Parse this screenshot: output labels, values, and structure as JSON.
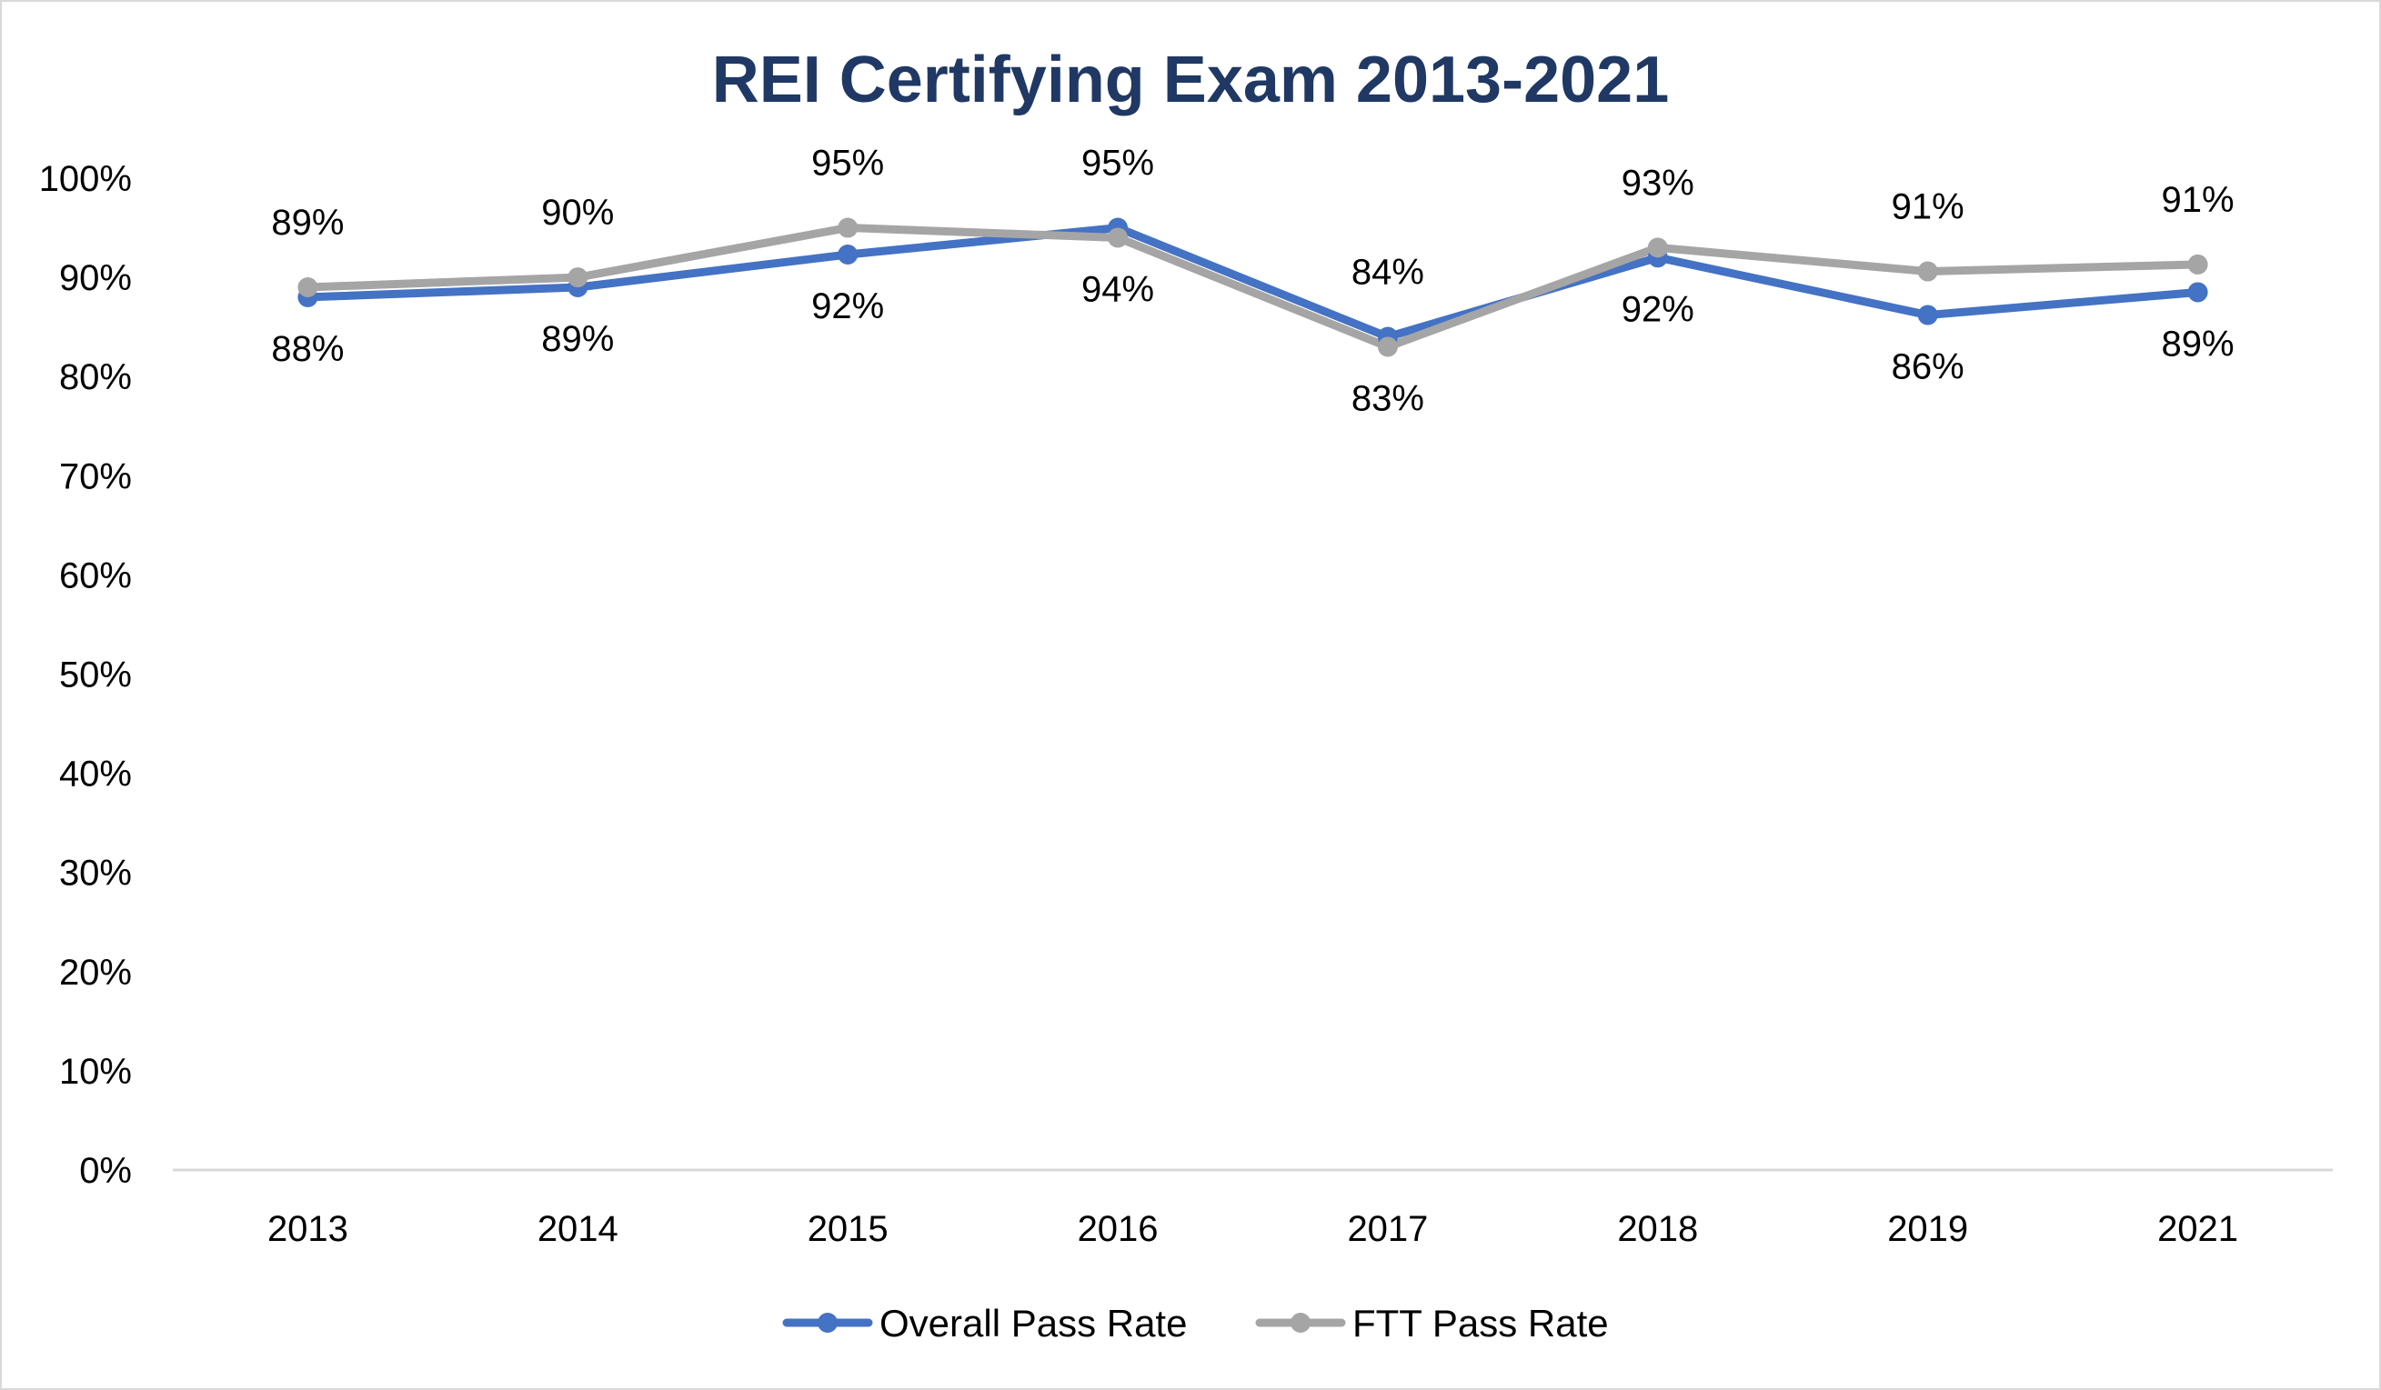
{
  "chart_data": {
    "type": "line",
    "title": "REI Certifying Exam 2013-2021",
    "categories": [
      "2013",
      "2014",
      "2015",
      "2016",
      "2017",
      "2018",
      "2019",
      "2021"
    ],
    "ylim": [
      0,
      100
    ],
    "yticks": [
      "0%",
      "10%",
      "20%",
      "30%",
      "40%",
      "50%",
      "60%",
      "70%",
      "80%",
      "90%",
      "100%"
    ],
    "grid": false,
    "legend_position": "bottom",
    "series": [
      {
        "name": "Overall Pass Rate",
        "color": "#4472c4",
        "values": [
          88,
          89,
          92.3,
          95,
          84,
          92,
          86.2,
          88.5
        ],
        "labels": [
          "88%",
          "89%",
          "92%",
          "95%",
          "84%",
          "92%",
          "86%",
          "89%"
        ],
        "label_positions": [
          "below",
          "below",
          "below",
          "above",
          "above",
          "below",
          "below",
          "below"
        ]
      },
      {
        "name": "FTT Pass Rate",
        "color": "#a5a5a5",
        "values": [
          89,
          90,
          95,
          94,
          83,
          93,
          90.6,
          91.3
        ],
        "labels": [
          "89%",
          "90%",
          "95%",
          "94%",
          "83%",
          "93%",
          "91%",
          "91%"
        ],
        "label_positions": [
          "above",
          "above",
          "above",
          "below",
          "below",
          "above",
          "above",
          "above"
        ]
      }
    ],
    "title_color": "#203864",
    "axis_color": "#d9d9d9"
  }
}
